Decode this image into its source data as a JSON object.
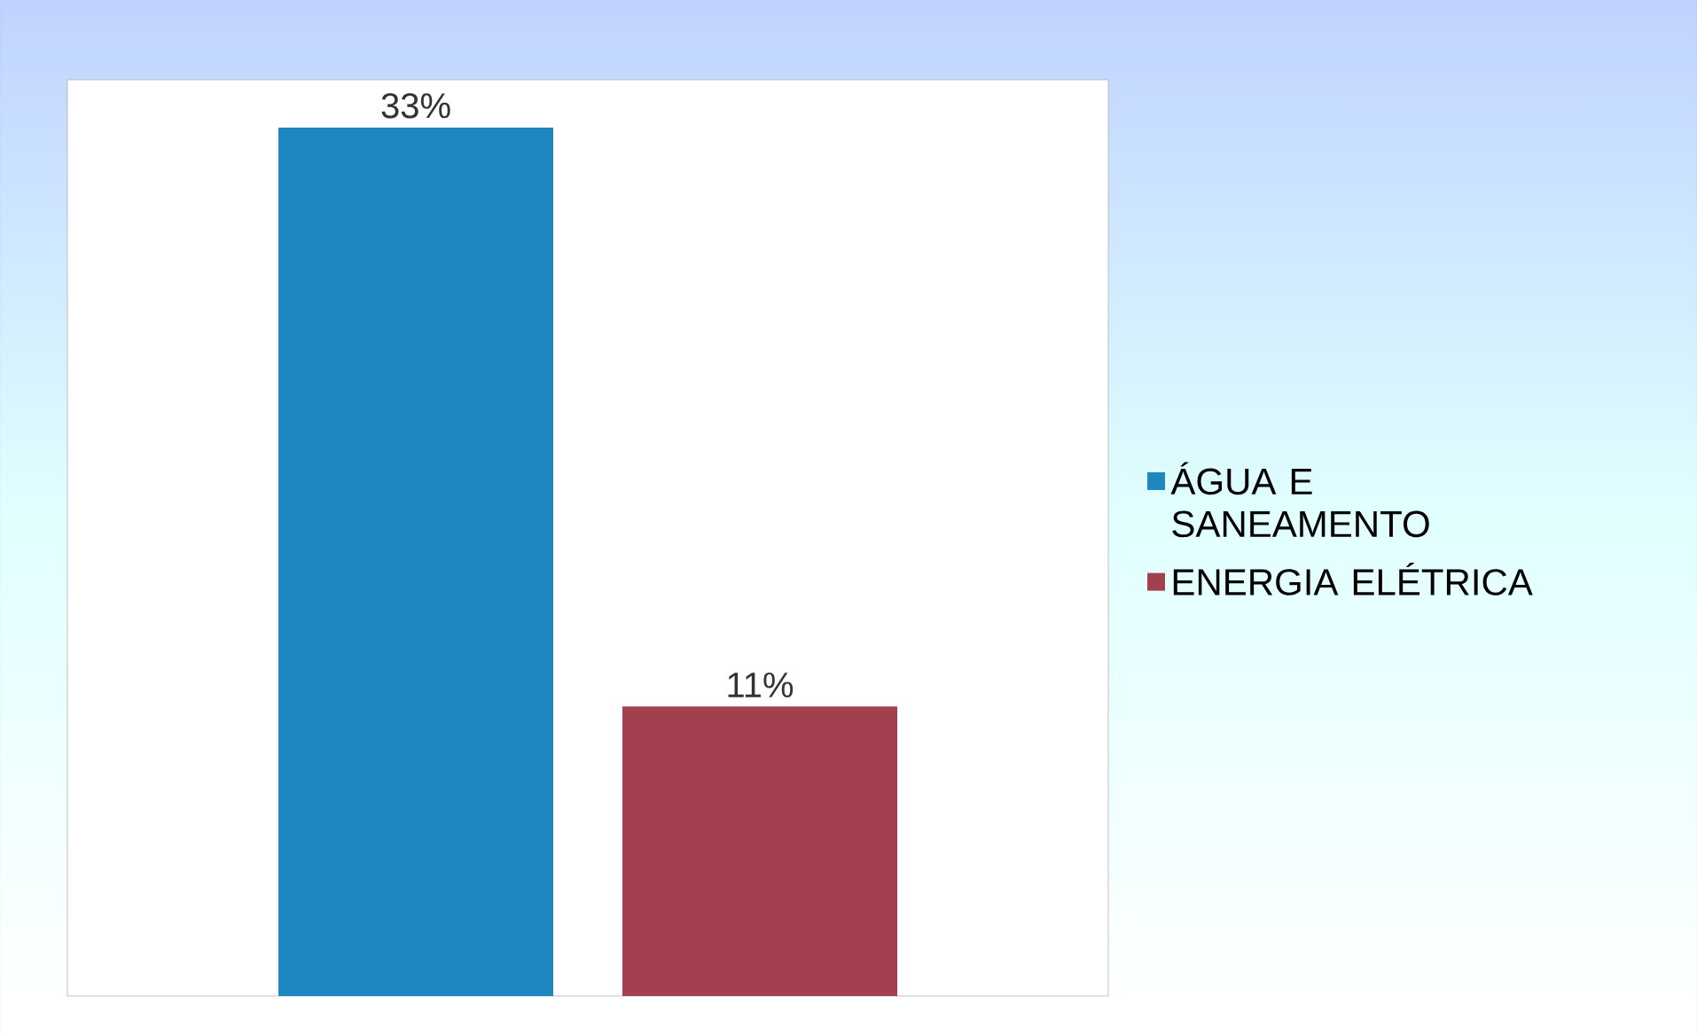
{
  "chart_data": {
    "type": "bar",
    "categories": [
      null
    ],
    "series": [
      {
        "name": "ÁGUA E SANEAMENTO",
        "color": "#1f87c0",
        "values": [
          33
        ],
        "value_labels": [
          "33%"
        ]
      },
      {
        "name": "ENERGIA ELÉTRICA",
        "color": "#a3404f",
        "values": [
          11
        ],
        "value_labels": [
          "11%"
        ]
      }
    ],
    "legend": "right"
  }
}
